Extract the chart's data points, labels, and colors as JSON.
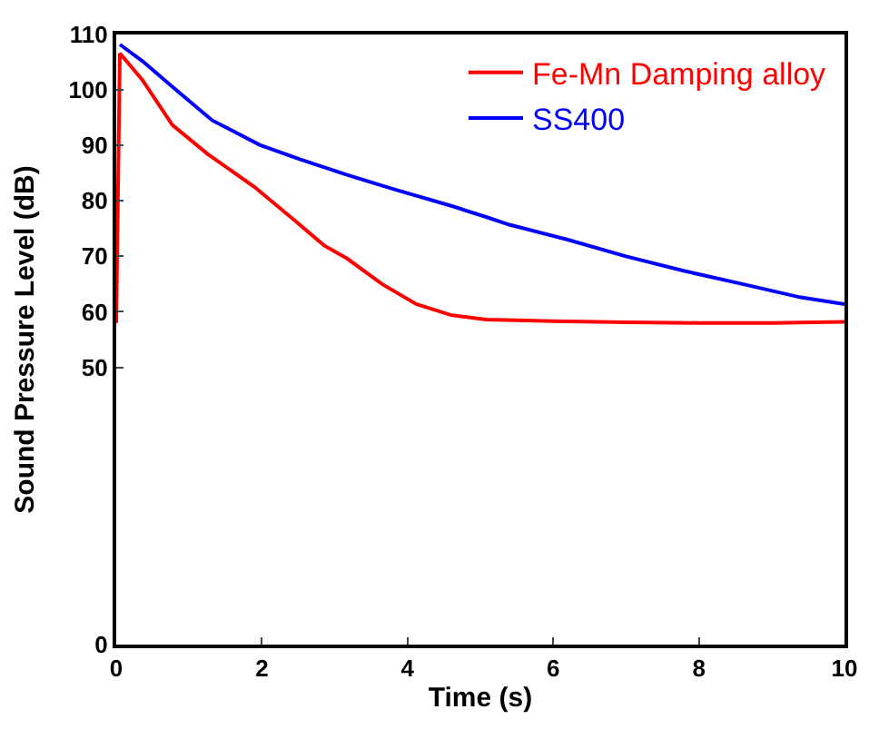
{
  "chart_data": {
    "type": "line",
    "xlabel": "Time (s)",
    "ylabel": "Sound Pressure Level (dB)",
    "xlim": [
      0,
      10
    ],
    "xticks": [
      0,
      2,
      4,
      6,
      8,
      10
    ],
    "ylim": [
      0,
      110
    ],
    "yticks": [
      0,
      50,
      60,
      70,
      80,
      90,
      100,
      110
    ],
    "legend": "top right",
    "marker": "none",
    "line_style": "solid",
    "series": [
      {
        "name": "Fe-Mn Damping alloy",
        "color": "#ff0000",
        "x": [
          0,
          0.05,
          0.36,
          0.77,
          1.25,
          1.9,
          2.52,
          2.85,
          3.17,
          3.65,
          4.12,
          4.6,
          5.08,
          6.0,
          7.0,
          8.0,
          9.0,
          10.0
        ],
        "values": [
          58,
          106.6,
          101.8,
          93.7,
          88.5,
          82.5,
          75.7,
          72,
          69.6,
          65,
          61.4,
          59.4,
          58.6,
          58.3,
          58.1,
          58.0,
          58.0,
          58.2
        ]
      },
      {
        "name": "SS400",
        "color": "#0000ff",
        "x": [
          0.05,
          0.36,
          0.77,
          1.32,
          1.97,
          2.52,
          3.17,
          3.81,
          4.6,
          5.08,
          5.4,
          6.2,
          7.0,
          7.79,
          8.6,
          9.4,
          10.0
        ],
        "values": [
          108.2,
          105.2,
          100.6,
          94.5,
          90.1,
          87.5,
          84.7,
          82.1,
          79.1,
          77.1,
          75.7,
          73,
          70,
          67.4,
          65,
          62.6,
          61.4
        ]
      }
    ]
  }
}
